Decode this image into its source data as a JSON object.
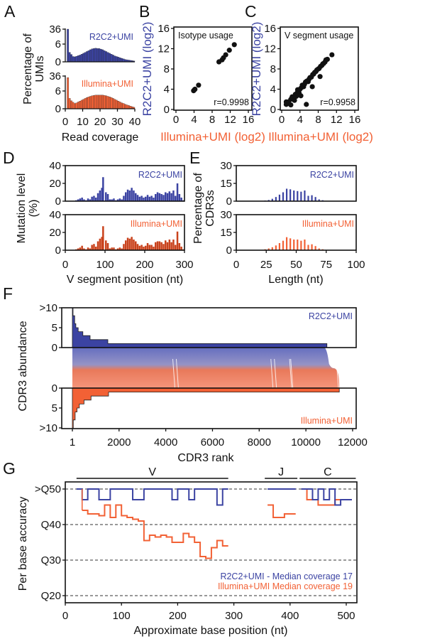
{
  "panel_labels": [
    "A",
    "B",
    "C",
    "D",
    "E",
    "F",
    "G"
  ],
  "colors": {
    "r2c2": "#3b43a2",
    "illumina": "#f26135",
    "illumina_dark": "#c9421c"
  },
  "chart_data": [
    {
      "panel": "A",
      "type": "bar",
      "xlabel": "Read coverage",
      "ylabel_lines": [
        "Percentage of",
        "UMIs"
      ],
      "xlim": [
        0,
        40
      ],
      "xticks": [
        0,
        10,
        20,
        30,
        40
      ],
      "yticks": [
        0,
        6,
        36
      ],
      "series": [
        {
          "name": "R2C2+UMI",
          "values": [
            36,
            3.2,
            2.5,
            1.8,
            1.7,
            1.9,
            2.1,
            2.3,
            2.6,
            2.9,
            3.2,
            3.5,
            3.8,
            4.1,
            4.4,
            4.5,
            4.6,
            4.5,
            4.5,
            4.3,
            4.1,
            3.8,
            3.5,
            3.2,
            2.9,
            2.6,
            2.3,
            2.0,
            1.8,
            1.6,
            1.4,
            1.2,
            1.0,
            0.8,
            0.7,
            0.6,
            0.5,
            0.4,
            0.3
          ]
        },
        {
          "name": "Illumina+UMI",
          "values": [
            33,
            3.5,
            2.7,
            2.2,
            1.8,
            2.0,
            2.3,
            2.6,
            2.9,
            3.2,
            3.5,
            3.8,
            4.0,
            4.2,
            4.4,
            4.5,
            4.6,
            4.6,
            4.6,
            4.6,
            4.6,
            4.5,
            4.4,
            4.2,
            4.0,
            3.8,
            3.5,
            3.2,
            2.9,
            2.6,
            2.3,
            2.0,
            1.8,
            1.5,
            1.3,
            1.1,
            0.9,
            0.7,
            0.5
          ]
        }
      ]
    },
    {
      "panel": "B",
      "type": "scatter",
      "title": "Isotype usage",
      "annotation": "r=0.9998",
      "xlabel": "Illumina+UMI (log2)",
      "ylabel": "R2C2+UMI (log2)",
      "xlim": [
        0,
        16
      ],
      "ylim": [
        0,
        16
      ],
      "xticks": [
        0,
        4,
        8,
        12,
        16
      ],
      "yticks": [
        0,
        4,
        8,
        12,
        16
      ],
      "points": [
        [
          3.9,
          3.7
        ],
        [
          4.1,
          3.9
        ],
        [
          4.2,
          4.0
        ],
        [
          5.0,
          4.8
        ],
        [
          9.5,
          9.4
        ],
        [
          10.2,
          9.8
        ],
        [
          10.5,
          10.2
        ],
        [
          11.0,
          10.8
        ],
        [
          11.8,
          11.7
        ],
        [
          12.9,
          12.8
        ]
      ]
    },
    {
      "panel": "C",
      "type": "scatter",
      "title": "V segment usage",
      "annotation": "r=0.9958",
      "xlabel": "Illumina+UMI (log2)",
      "ylabel": "R2C2+UMI (log2)",
      "xlim": [
        0,
        16
      ],
      "ylim": [
        0,
        16
      ],
      "xticks": [
        0,
        4,
        8,
        12,
        16
      ],
      "yticks": [
        0,
        4,
        8,
        12,
        16
      ],
      "points": [
        [
          1,
          1
        ],
        [
          1,
          1.5
        ],
        [
          1.2,
          1.2
        ],
        [
          1.5,
          1.5
        ],
        [
          2,
          0.9
        ],
        [
          2,
          2
        ],
        [
          2.3,
          2.5
        ],
        [
          2.5,
          2.2
        ],
        [
          2.8,
          1.8
        ],
        [
          3,
          3
        ],
        [
          3.2,
          2.6
        ],
        [
          3.5,
          3.5
        ],
        [
          3.5,
          3.9
        ],
        [
          3.8,
          3.3
        ],
        [
          4,
          4
        ],
        [
          4.2,
          2.7
        ],
        [
          4.3,
          4.3
        ],
        [
          4.5,
          4.8
        ],
        [
          4.8,
          4.5
        ],
        [
          5,
          5
        ],
        [
          5.2,
          5.4
        ],
        [
          5.4,
          1
        ],
        [
          5.5,
          5.6
        ],
        [
          5.8,
          5.5
        ],
        [
          6,
          6
        ],
        [
          6.2,
          6.3
        ],
        [
          6.5,
          6.4
        ],
        [
          6.7,
          4.5
        ],
        [
          6.8,
          6.9
        ],
        [
          7,
          7
        ],
        [
          7.2,
          7.3
        ],
        [
          7.5,
          7.5
        ],
        [
          7.7,
          7.8
        ],
        [
          8,
          8
        ],
        [
          8.2,
          8.1
        ],
        [
          8.4,
          6.5
        ],
        [
          8.5,
          8.5
        ],
        [
          8.8,
          8.7
        ],
        [
          9,
          9
        ],
        [
          9.2,
          9.1
        ],
        [
          9.5,
          9.4
        ],
        [
          9.7,
          9.8
        ],
        [
          10,
          9.9
        ],
        [
          11,
          10.8
        ]
      ]
    },
    {
      "panel": "D",
      "type": "bar",
      "xlabel": "V segment position (nt)",
      "ylabel_lines": [
        "Mutation level",
        "(%)"
      ],
      "xlim": [
        0,
        300
      ],
      "ylim": [
        0,
        40
      ],
      "xticks": [
        0,
        100,
        200,
        300
      ],
      "yticks": [
        0,
        20,
        40
      ],
      "x": [
        0,
        5,
        10,
        15,
        20,
        25,
        30,
        35,
        40,
        45,
        50,
        55,
        60,
        65,
        70,
        75,
        80,
        85,
        90,
        93,
        100,
        105,
        110,
        115,
        120,
        125,
        130,
        135,
        140,
        145,
        150,
        155,
        160,
        165,
        170,
        175,
        180,
        185,
        190,
        195,
        200,
        205,
        210,
        215,
        220,
        225,
        230,
        235,
        240,
        245,
        250,
        255,
        260,
        265,
        270,
        275,
        280,
        285,
        290,
        295
      ],
      "series": [
        {
          "name": "R2C2+UMI",
          "values": [
            0,
            0,
            0,
            0,
            0,
            1,
            2,
            3,
            4,
            2,
            1,
            3,
            2,
            5,
            6,
            4,
            9,
            12,
            15,
            27,
            10,
            8,
            2,
            2,
            3,
            1,
            2,
            3,
            2,
            6,
            10,
            13,
            12,
            15,
            12,
            9,
            7,
            5,
            6,
            4,
            5,
            7,
            5,
            6,
            4,
            8,
            10,
            9,
            8,
            7,
            10,
            9,
            11,
            9,
            12,
            6,
            20,
            8,
            4,
            1
          ]
        },
        {
          "name": "Illumina+UMI",
          "values": [
            0,
            0,
            0,
            0,
            0,
            1,
            2,
            3,
            5,
            2,
            1,
            3,
            2,
            6,
            7,
            4,
            10,
            13,
            15,
            27,
            11,
            8,
            2,
            3,
            3,
            1,
            2,
            3,
            2,
            7,
            11,
            14,
            13,
            15,
            12,
            10,
            7,
            5,
            6,
            4,
            5,
            8,
            6,
            6,
            4,
            9,
            10,
            10,
            9,
            7,
            11,
            9,
            12,
            9,
            12,
            6,
            21,
            8,
            4,
            1
          ]
        }
      ]
    },
    {
      "panel": "E",
      "type": "bar",
      "xlabel": "Length (nt)",
      "ylabel_lines": [
        "Percentage of",
        "CDR3s"
      ],
      "xlim": [
        0,
        100
      ],
      "ylim": [
        0,
        30
      ],
      "xticks": [
        0,
        25,
        50,
        75,
        100
      ],
      "yticks": [
        0,
        15,
        30
      ],
      "x": [
        24,
        27,
        30,
        33,
        36,
        39,
        42,
        45,
        48,
        51,
        54,
        57,
        60,
        63,
        66,
        69,
        72,
        75
      ],
      "series": [
        {
          "name": "R2C2+UMI",
          "values": [
            0.5,
            1,
            2,
            3.5,
            5.5,
            7.5,
            10.5,
            10,
            9,
            8.5,
            8,
            9,
            4.5,
            5,
            3.5,
            1.5,
            0.8,
            0.3
          ]
        },
        {
          "name": "Illumina+UMI",
          "values": [
            0.8,
            1.5,
            2.5,
            4,
            6,
            8,
            11,
            10,
            9,
            9,
            8,
            9,
            4.5,
            5,
            3.5,
            1.5,
            0.8,
            0.3
          ]
        }
      ]
    },
    {
      "panel": "F",
      "type": "area",
      "xlabel": "CDR3 rank",
      "ylabel": "CDR3 abundance",
      "xlim": [
        1,
        12000
      ],
      "xticks": [
        1,
        2000,
        4000,
        6000,
        8000,
        10000,
        12000
      ],
      "yticks": [
        {
          "value": 10,
          "label": ">10"
        },
        {
          "value": 5,
          "label": "5"
        },
        {
          "value": 0,
          "label": "0"
        }
      ],
      "yticks_bottom": [
        {
          "value": 0,
          "label": "0"
        },
        {
          "value": 5,
          "label": "5"
        },
        {
          "value": 10,
          "label": ">10"
        }
      ],
      "series": [
        {
          "name": "R2C2+UMI",
          "steps": [
            [
              1,
              10
            ],
            [
              30,
              8
            ],
            [
              100,
              6
            ],
            [
              150,
              5
            ],
            [
              250,
              4
            ],
            [
              450,
              3
            ],
            [
              760,
              2
            ],
            [
              1520,
              1
            ]
          ],
          "last_rank": 10900
        },
        {
          "name": "Illumina+UMI",
          "steps": [
            [
              1,
              10
            ],
            [
              40,
              8
            ],
            [
              120,
              6
            ],
            [
              200,
              5
            ],
            [
              300,
              4
            ],
            [
              500,
              3
            ],
            [
              800,
              2
            ],
            [
              1550,
              1
            ]
          ],
          "last_rank": 11430
        }
      ]
    },
    {
      "panel": "G",
      "type": "line",
      "xlabel": "Approximate base position (nt)",
      "ylabel": "Per base accuracy",
      "xlim": [
        0,
        520
      ],
      "xticks": [
        0,
        100,
        200,
        300,
        400,
        500
      ],
      "yticks": [
        {
          "value": 50,
          "label": ">Q50"
        },
        {
          "value": 40,
          "label": "Q40"
        },
        {
          "value": 30,
          "label": "Q30"
        },
        {
          "value": 20,
          "label": "Q20"
        }
      ],
      "grid": true,
      "regions": [
        {
          "label": "V",
          "range": [
            20,
            290
          ]
        },
        {
          "label": "J",
          "range": [
            355,
            413
          ]
        },
        {
          "label": "C",
          "range": [
            417,
            517
          ]
        }
      ],
      "series": [
        {
          "name": "R2C2+UMI",
          "legend": "R2C2+UMI - Median coverage 17",
          "segments": [
            [
              [
                20,
                30,
                50
              ],
              [
                30,
                40,
                47
              ],
              [
                40,
                60,
                50
              ],
              [
                60,
                80,
                47
              ],
              [
                80,
                120,
                50
              ],
              [
                120,
                140,
                47
              ],
              [
                140,
                190,
                50
              ],
              [
                190,
                200,
                47
              ],
              [
                200,
                220,
                50
              ],
              [
                220,
                230,
                47
              ],
              [
                230,
                270,
                50
              ],
              [
                270,
                280,
                45.5
              ],
              [
                280,
                290,
                50
              ]
            ],
            [
              [
                360,
                410,
                50
              ]
            ],
            [
              [
                420,
                440,
                50
              ],
              [
                440,
                450,
                47
              ],
              [
                450,
                460,
                50
              ],
              [
                460,
                470,
                47
              ],
              [
                470,
                480,
                50
              ],
              [
                480,
                490,
                45.5
              ],
              [
                490,
                510,
                47
              ]
            ]
          ]
        },
        {
          "name": "Illumina+UMI",
          "legend": "Illumina+UMI Median coverage 19",
          "segments": [
            [
              [
                30,
                40,
                44
              ],
              [
                40,
                60,
                43
              ],
              [
                60,
                70,
                42.5
              ],
              [
                70,
                80,
                45.5
              ],
              [
                80,
                90,
                42
              ],
              [
                90,
                100,
                45.5
              ],
              [
                100,
                110,
                42.5
              ],
              [
                110,
                120,
                42
              ],
              [
                120,
                130,
                41.5
              ],
              [
                130,
                140,
                41
              ],
              [
                140,
                150,
                35.5
              ],
              [
                150,
                160,
                37
              ],
              [
                160,
                170,
                36.5
              ],
              [
                170,
                180,
                37
              ],
              [
                180,
                190,
                36.5
              ],
              [
                190,
                200,
                35
              ],
              [
                200,
                210,
                35
              ],
              [
                210,
                220,
                37.5
              ],
              [
                220,
                230,
                36.5
              ],
              [
                230,
                240,
                35
              ],
              [
                240,
                250,
                31
              ],
              [
                250,
                260,
                30.5
              ],
              [
                260,
                270,
                33.5
              ],
              [
                270,
                280,
                35.5
              ],
              [
                280,
                290,
                34
              ]
            ],
            [
              [
                360,
                370,
                45.5
              ],
              [
                370,
                390,
                42
              ],
              [
                390,
                410,
                43
              ]
            ],
            [
              [
                420,
                430,
                50
              ],
              [
                430,
                450,
                47
              ],
              [
                450,
                480,
                45.5
              ],
              [
                480,
                510,
                47
              ]
            ]
          ]
        }
      ]
    }
  ]
}
